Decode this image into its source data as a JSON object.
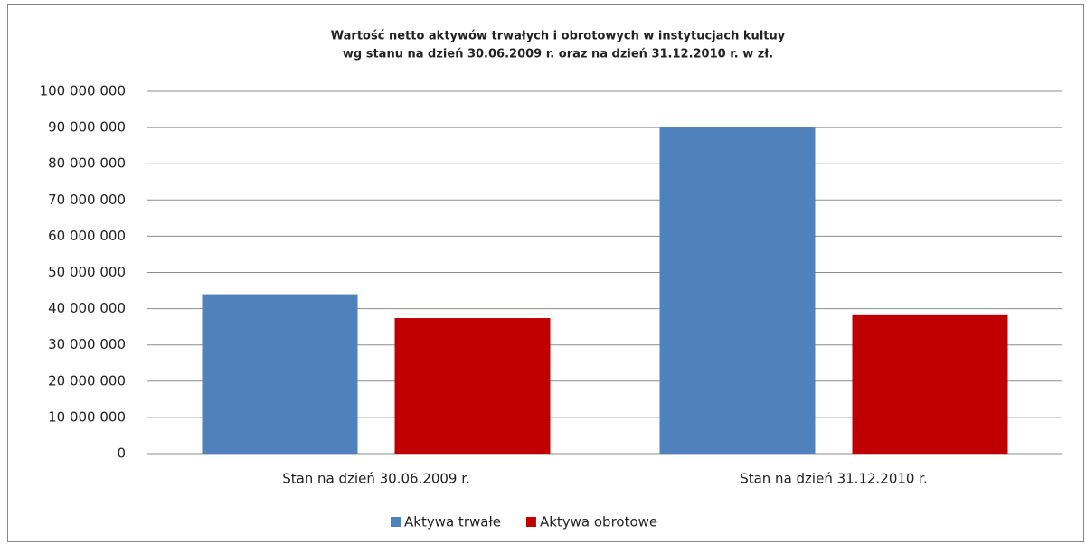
{
  "chart_data": {
    "type": "bar",
    "title": [
      "Wartość netto aktywów trwałych i obrotowych w instytucjach kultuy",
      "wg stanu na dzień  30.06.2009 r. oraz na dzień 31.12.2010 r.  w zł."
    ],
    "categories": [
      "Stan na dzień 30.06.2009 r.",
      "Stan na dzień 31.12.2010 r."
    ],
    "series": [
      {
        "name": "Aktywa trwałe",
        "color": "#4f81bd",
        "values": [
          44000000,
          90000000
        ]
      },
      {
        "name": "Aktywa obrotowe",
        "color": "#c00000",
        "values": [
          37400000,
          38200000
        ]
      }
    ],
    "ylim": [
      0,
      100000000
    ],
    "yticks": [
      0,
      {
        "value": 10000000,
        "label": "10 000 000"
      },
      {
        "value": 20000000,
        "label": "20 000 000"
      },
      {
        "value": 30000000,
        "label": "30 000 000"
      },
      {
        "value": 40000000,
        "label": "40 000 000"
      },
      {
        "value": 50000000,
        "label": "50 000 000"
      },
      {
        "value": 60000000,
        "label": "60 000 000"
      },
      {
        "value": 70000000,
        "label": "70 000 000"
      },
      {
        "value": 80000000,
        "label": "80 000 000"
      },
      {
        "value": 90000000,
        "label": "90 000 000"
      },
      {
        "value": 100000000,
        "label": "100 000 000"
      }
    ],
    "grid": true,
    "legend": "bottom"
  }
}
